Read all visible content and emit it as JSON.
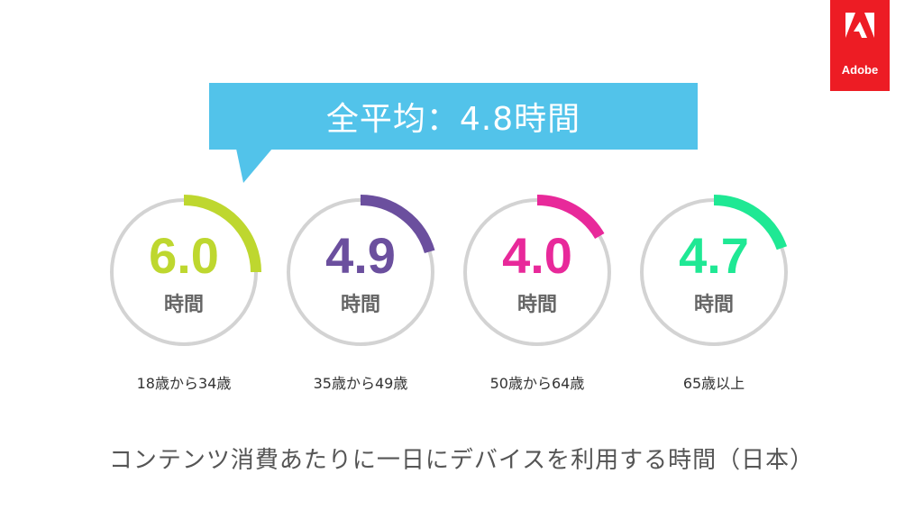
{
  "logo": {
    "text": "Adobe",
    "color": "#ed1c24"
  },
  "callout": {
    "text": "全平均：4.8時間",
    "color": "#52c3ea"
  },
  "caption": "コンテンツ消費あたりに一日にデバイスを利用する時間（日本）",
  "chart_data": {
    "type": "gauge",
    "unit": "時間",
    "max": 24,
    "track_color": "#d3d3d3",
    "items": [
      {
        "value": "6.0",
        "label": "18歳から34歳",
        "color": "#bed72f"
      },
      {
        "value": "4.9",
        "label": "35歳から49歳",
        "color": "#6b4f9e"
      },
      {
        "value": "4.0",
        "label": "50歳から64歳",
        "color": "#e8299a"
      },
      {
        "value": "4.7",
        "label": "65歳以上",
        "color": "#1fe894"
      }
    ]
  }
}
